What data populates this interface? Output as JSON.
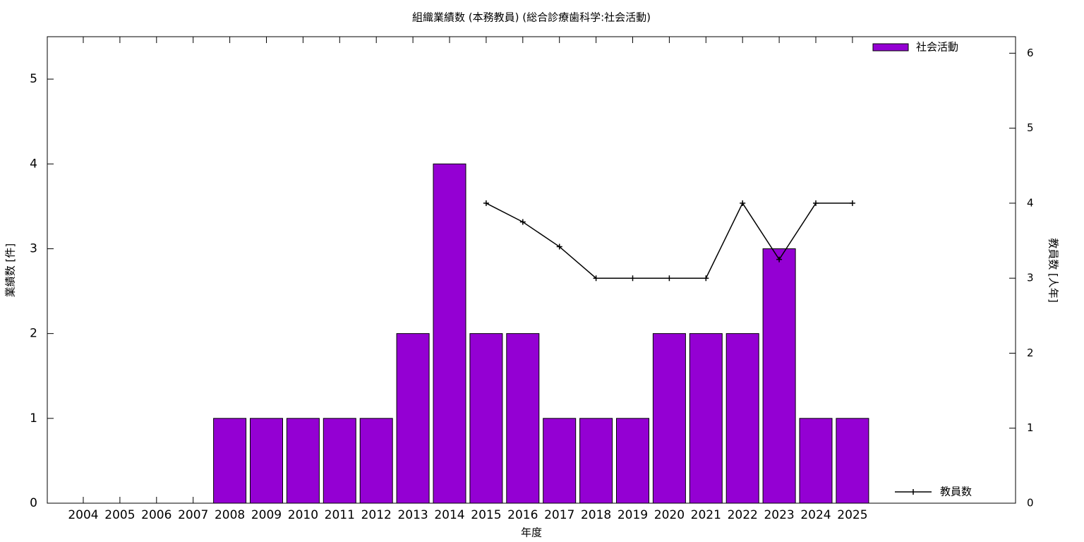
{
  "chart_data": {
    "type": "bar",
    "title": "組織業績数 (本務教員) (総合診療歯科学:社会活動)",
    "x_label": "年度",
    "y_label": "業績数 [件]",
    "y2_label": "教員数 [人年]",
    "categories": [
      "2004",
      "2005",
      "2006",
      "2007",
      "2008",
      "2009",
      "2010",
      "2011",
      "2012",
      "2013",
      "2014",
      "2015",
      "2016",
      "2017",
      "2018",
      "2019",
      "2020",
      "2021",
      "2022",
      "2023",
      "2024",
      "2025"
    ],
    "series": [
      {
        "name": "社会活動",
        "type": "bar",
        "color": "#9400d3",
        "values": [
          0,
          0,
          0,
          0,
          1,
          1,
          1,
          1,
          1,
          2,
          4,
          2,
          2,
          1,
          1,
          1,
          2,
          2,
          2,
          3,
          1,
          1
        ]
      },
      {
        "name": "教員数",
        "type": "line",
        "axis": "y2",
        "color": "#000000",
        "values": [
          null,
          null,
          null,
          null,
          null,
          null,
          null,
          null,
          null,
          null,
          null,
          4,
          3.75,
          3.42,
          3,
          3,
          3,
          3,
          4,
          3.25,
          4,
          4
        ]
      }
    ],
    "ylim": [
      0,
      5.5
    ],
    "yticks": [
      0,
      1,
      2,
      3,
      4,
      5
    ],
    "y2lim": [
      0,
      6.22
    ],
    "y2ticks": [
      0,
      1,
      2,
      3,
      4,
      5,
      6
    ]
  }
}
